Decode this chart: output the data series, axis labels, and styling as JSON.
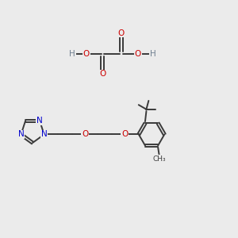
{
  "bg_color": "#ebebeb",
  "bond_color": "#3a3a3a",
  "N_color": "#0000cc",
  "O_color": "#cc0000",
  "H_color": "#708090",
  "line_width": 1.4,
  "font_size": 7.5,
  "fig_width": 3.0,
  "fig_height": 3.0,
  "xlim": [
    0,
    10
  ],
  "ylim": [
    0,
    10
  ]
}
